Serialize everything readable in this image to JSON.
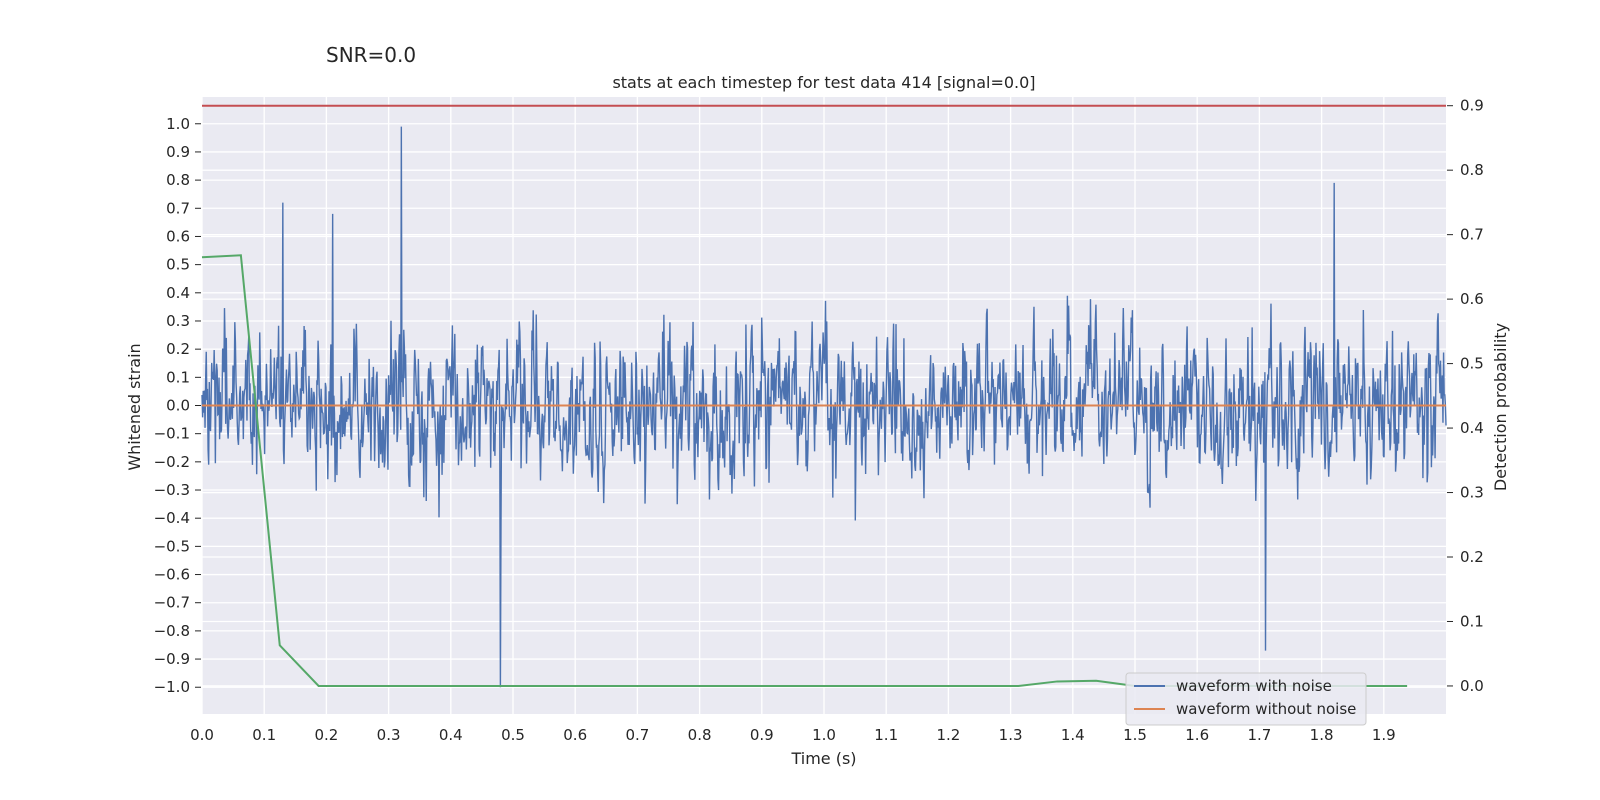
{
  "suptitle": "SNR=0.0",
  "chart_data": {
    "type": "line",
    "title": "stats at each timestep for test data 414 [signal=0.0]",
    "xlabel": "Time (s)",
    "ylabel": "Whitened strain",
    "y2label": "Detection probability",
    "xlim": [
      0.0,
      2.0
    ],
    "ylim": [
      -1.095,
      1.095
    ],
    "y2lim": [
      -0.0435,
      0.9135
    ],
    "xticks": [
      "0.0",
      "0.1",
      "0.2",
      "0.3",
      "0.4",
      "0.5",
      "0.6",
      "0.7",
      "0.8",
      "0.9",
      "1.0",
      "1.1",
      "1.2",
      "1.3",
      "1.4",
      "1.5",
      "1.6",
      "1.7",
      "1.8",
      "1.9"
    ],
    "yticks": [
      "1.0",
      "0.9",
      "0.8",
      "0.7",
      "0.6",
      "0.5",
      "0.4",
      "0.3",
      "0.2",
      "0.1",
      "0.0",
      "−0.1",
      "−0.2",
      "−0.3",
      "−0.4",
      "−0.5",
      "−0.6",
      "−0.7",
      "−0.8",
      "−0.9",
      "−1.0"
    ],
    "y2ticks": [
      "0.9",
      "0.8",
      "0.7",
      "0.6",
      "0.5",
      "0.4",
      "0.3",
      "0.2",
      "0.1",
      "0.0"
    ],
    "grid": true,
    "legend_position": "lower right",
    "series": [
      {
        "name": "waveform with noise",
        "axis": "left",
        "color": "#4c72b0",
        "style": "noisy line (approx. 2048 samples, values within −1.0 to 1.0, peak 0.99 near t=0.32, minimum −1.0 near t=0.48)",
        "peaks": [
          {
            "x": 0.32,
            "y": 0.99
          },
          {
            "x": 0.48,
            "y": -1.0
          },
          {
            "x": 1.71,
            "y": -0.87
          },
          {
            "x": 1.82,
            "y": 0.79
          },
          {
            "x": 0.13,
            "y": 0.72
          },
          {
            "x": 0.21,
            "y": 0.68
          }
        ]
      },
      {
        "name": "waveform without noise",
        "axis": "left",
        "color": "#dd8452",
        "x": [
          0.0,
          2.0
        ],
        "y": [
          0.0,
          0.0
        ]
      },
      {
        "axis": "right",
        "color": "#55a868",
        "x": [
          0.0,
          0.0625,
          0.125,
          0.1875,
          1.3125,
          1.375,
          1.4375,
          1.5,
          1.9375
        ],
        "y": [
          0.665,
          0.668,
          0.063,
          0.0,
          0.0,
          0.007,
          0.008,
          0.0,
          0.0
        ]
      },
      {
        "axis": "right",
        "color": "#c44e52",
        "x": [
          0.0,
          2.0
        ],
        "y": [
          0.9,
          0.9
        ]
      }
    ]
  }
}
